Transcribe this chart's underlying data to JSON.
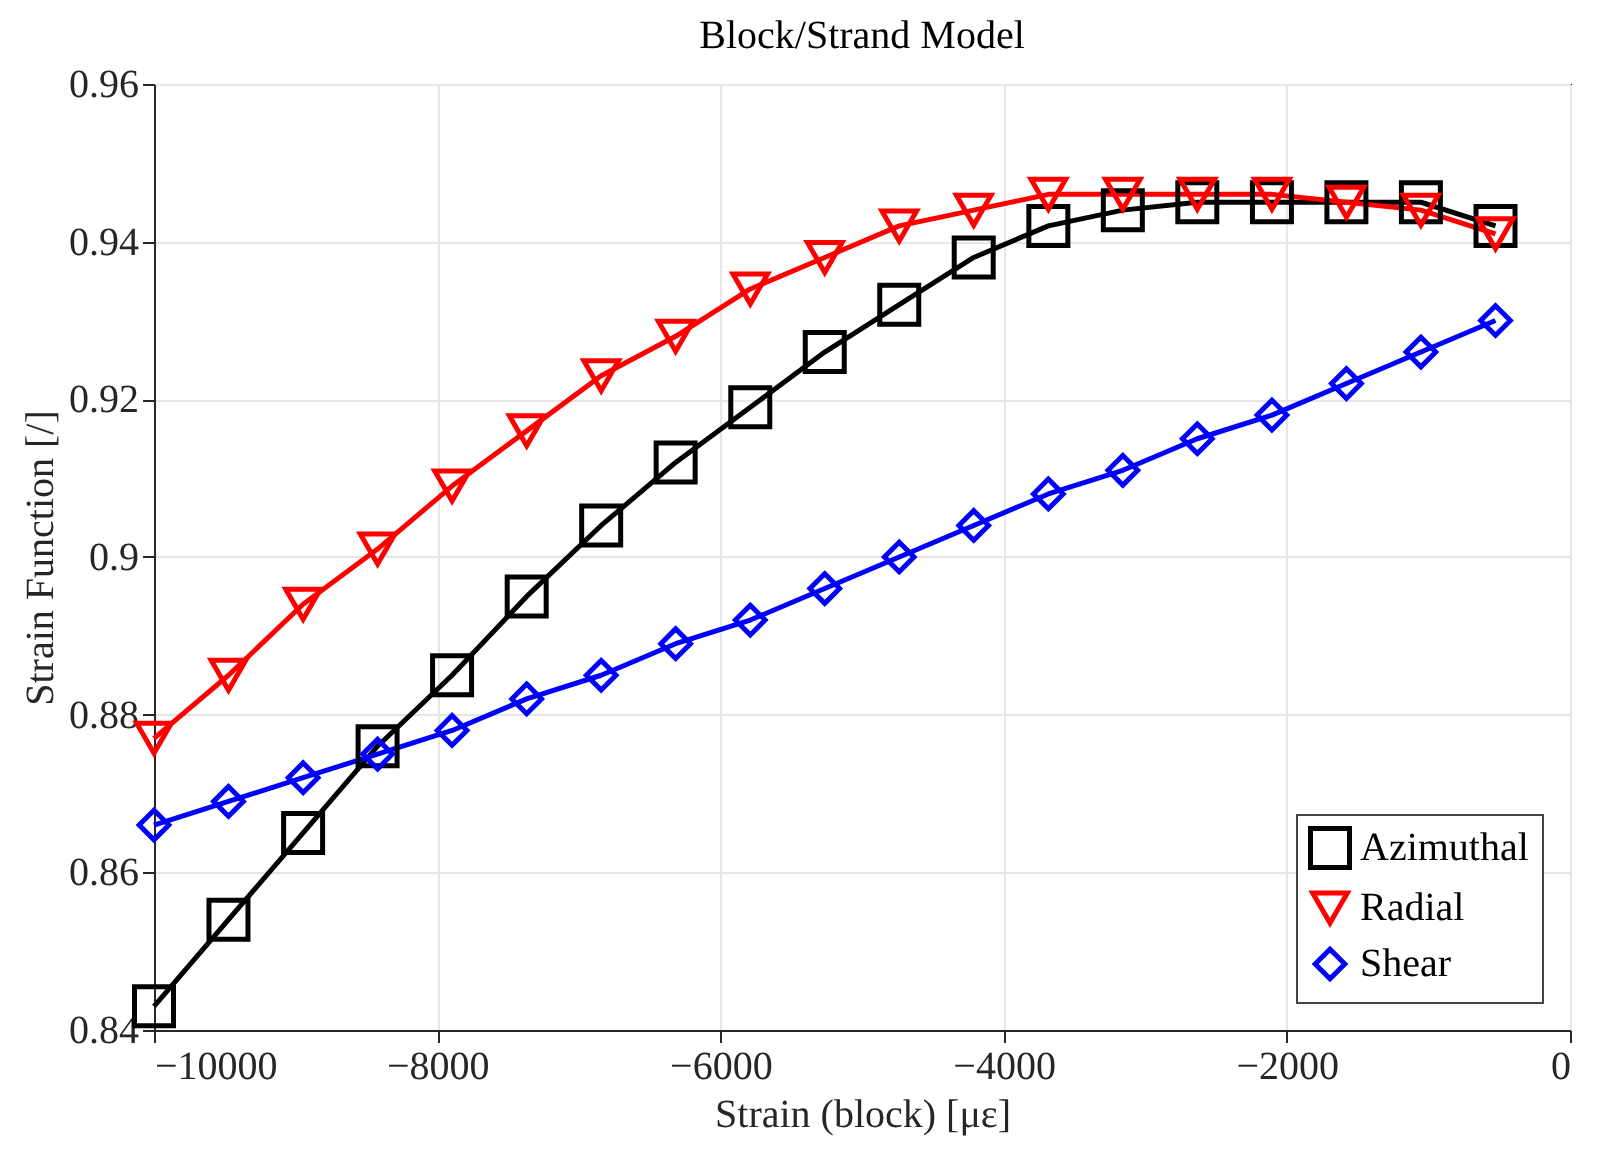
{
  "chart_data": {
    "type": "line",
    "title": "Block/Strand Model",
    "xlabel": "Strain (block) [με]",
    "ylabel": "Strain Function [/]",
    "x": [
      -10000,
      -9474,
      -8947,
      -8421,
      -7895,
      -7368,
      -6842,
      -6316,
      -5789,
      -5263,
      -4737,
      -4211,
      -3684,
      -3158,
      -2632,
      -2105,
      -1579,
      -1053,
      -526
    ],
    "series": [
      {
        "name": "Azimuthal",
        "color": "#000000",
        "marker": "square",
        "values": [
          0.843,
          0.854,
          0.865,
          0.876,
          0.885,
          0.895,
          0.904,
          0.912,
          0.919,
          0.926,
          0.932,
          0.938,
          0.942,
          0.944,
          0.945,
          0.945,
          0.945,
          0.945,
          0.942
        ]
      },
      {
        "name": "Radial",
        "color": "#ff0000",
        "marker": "triangle-down",
        "values": [
          0.877,
          0.885,
          0.894,
          0.901,
          0.909,
          0.916,
          0.923,
          0.928,
          0.934,
          0.938,
          0.942,
          0.944,
          0.946,
          0.946,
          0.946,
          0.946,
          0.945,
          0.944,
          0.941
        ]
      },
      {
        "name": "Shear",
        "color": "#0000ff",
        "marker": "diamond",
        "values": [
          0.866,
          0.869,
          0.872,
          0.875,
          0.878,
          0.882,
          0.885,
          0.889,
          0.892,
          0.896,
          0.9,
          0.904,
          0.908,
          0.911,
          0.915,
          0.918,
          0.922,
          0.926,
          0.93
        ]
      }
    ],
    "xlim": [
      -10000,
      0
    ],
    "xticks": [
      -10000,
      -8000,
      -6000,
      -4000,
      -2000,
      0
    ],
    "ylim": [
      0.84,
      0.96
    ],
    "yticks": [
      0.84,
      0.86,
      0.88,
      0.9,
      0.92,
      0.94,
      0.96
    ],
    "grid": true,
    "legend": "bottom right",
    "line_style": "solid"
  }
}
